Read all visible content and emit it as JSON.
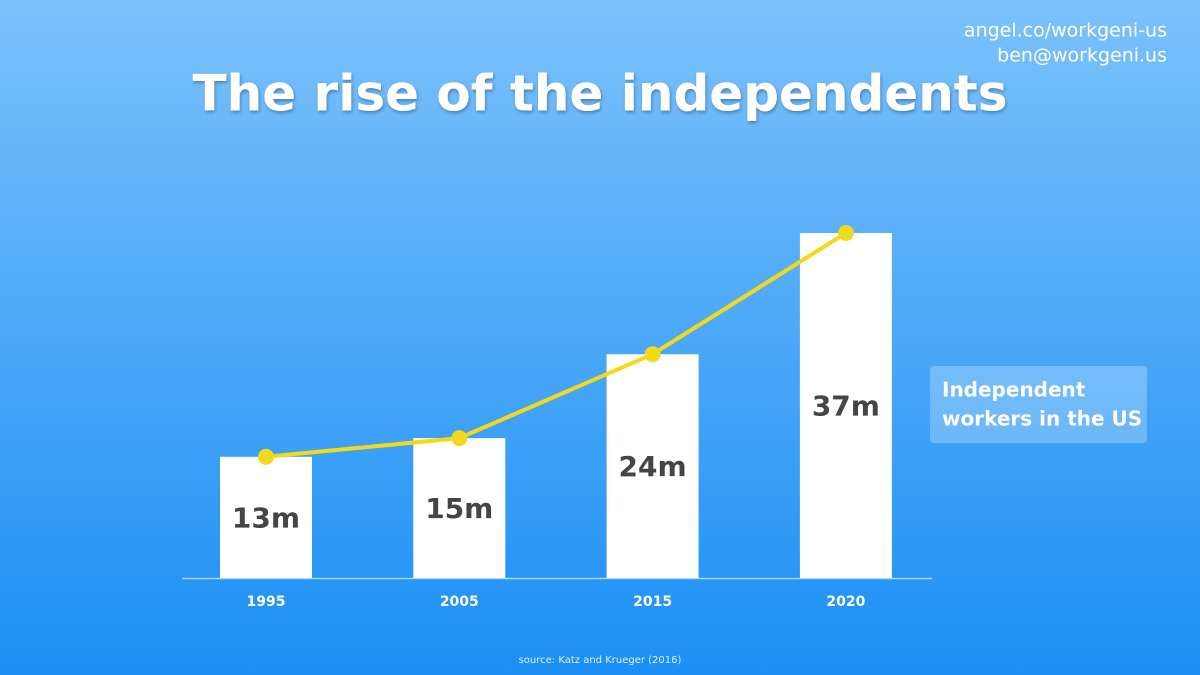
{
  "chart_data": {
    "type": "bar",
    "title": "The rise of the independents",
    "categories": [
      "1995",
      "2005",
      "2015",
      "2020"
    ],
    "values": [
      13,
      15,
      24,
      37
    ],
    "value_labels": [
      "13m",
      "15m",
      "24m",
      "37m"
    ],
    "color": "#ffffff",
    "line_color": "#f2d91c",
    "annotation": [
      "Independent",
      "workers in the US"
    ],
    "source": "source: Katz and Krueger (2016)",
    "contact": [
      "angel.co/workgeni-us",
      "ben@workgeni.us"
    ]
  }
}
